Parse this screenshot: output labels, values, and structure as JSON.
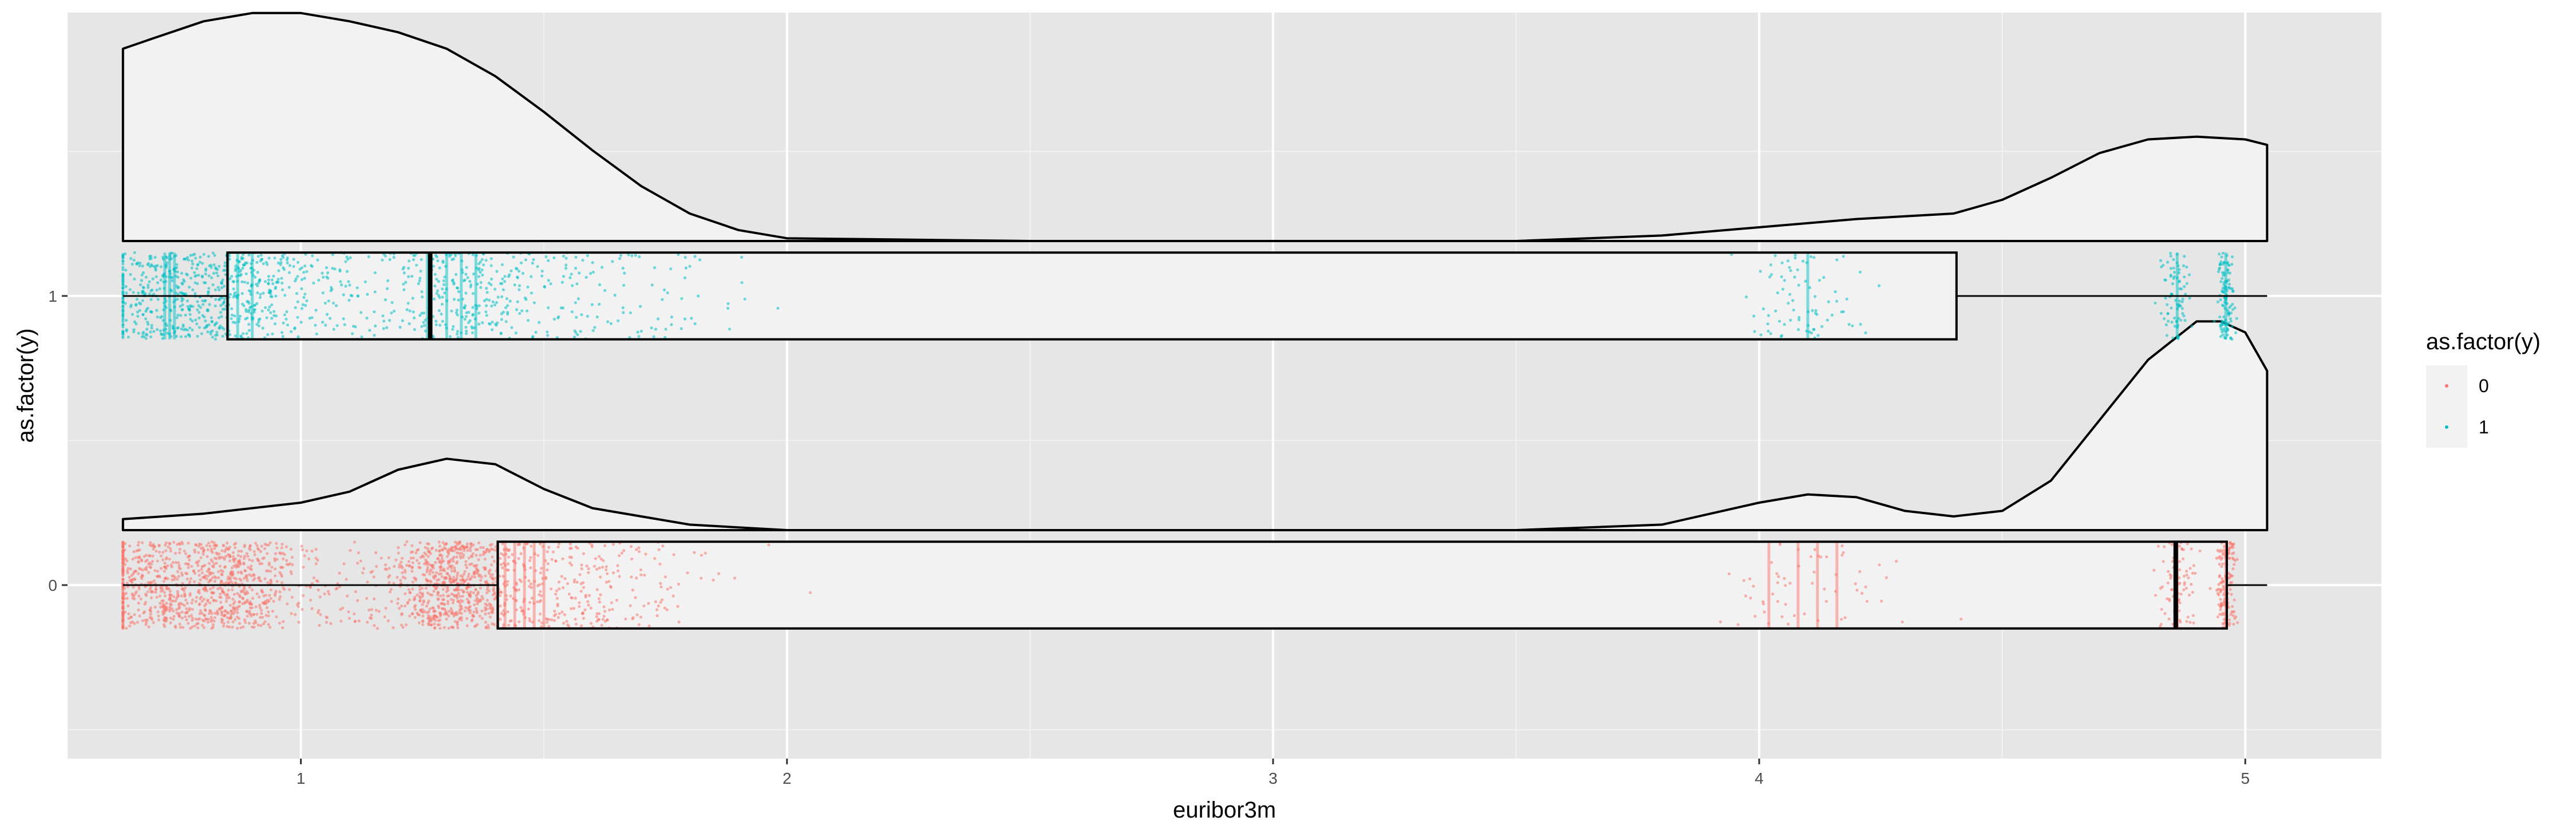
{
  "chart_data": {
    "type": "raincloud",
    "title": "",
    "xlabel": "euribor3m",
    "ylabel": "as.factor(y)",
    "xlim": [
      0.52,
      5.28
    ],
    "ylim": [
      -0.6,
      1.98
    ],
    "x_ticks": [
      1,
      2,
      3,
      4,
      5
    ],
    "y_ticks": [
      0,
      1
    ],
    "grid": true,
    "legend": {
      "title": "as.factor(y)",
      "position": "right",
      "entries": [
        {
          "label": "0",
          "color": "#F8766D"
        },
        {
          "label": "1",
          "color": "#00BFC4"
        }
      ]
    },
    "series": [
      {
        "name": "0",
        "y": 0,
        "color": "#F8766D",
        "box": {
          "min": 0.634,
          "q1": 1.405,
          "median": 4.857,
          "q3": 4.962,
          "max": 5.045
        },
        "density": {
          "x": [
            0.634,
            0.8,
            1.0,
            1.1,
            1.2,
            1.3,
            1.4,
            1.5,
            1.6,
            1.8,
            2.0,
            2.5,
            3.0,
            3.5,
            3.8,
            3.9,
            4.0,
            4.1,
            4.2,
            4.3,
            4.4,
            4.5,
            4.6,
            4.7,
            4.8,
            4.9,
            4.95,
            5.0,
            5.045
          ],
          "h": [
            0.04,
            0.06,
            0.1,
            0.14,
            0.22,
            0.26,
            0.24,
            0.15,
            0.08,
            0.02,
            0.0,
            0.0,
            0.0,
            0.0,
            0.02,
            0.06,
            0.1,
            0.13,
            0.12,
            0.07,
            0.05,
            0.07,
            0.18,
            0.4,
            0.62,
            0.76,
            0.76,
            0.72,
            0.58
          ]
        },
        "jitter_clusters": [
          {
            "center": 0.72,
            "spread": 0.09,
            "count": 650
          },
          {
            "center": 0.88,
            "spread": 0.05,
            "count": 350
          },
          {
            "center": 1.05,
            "spread": 0.08,
            "count": 100
          },
          {
            "center": 1.31,
            "spread": 0.07,
            "count": 700
          },
          {
            "center": 1.55,
            "spread": 0.15,
            "count": 300
          },
          {
            "center": 4.1,
            "spread": 0.1,
            "count": 60
          },
          {
            "center": 4.86,
            "spread": 0.02,
            "count": 90
          },
          {
            "center": 4.96,
            "spread": 0.01,
            "count": 160
          }
        ],
        "stripes": [
          1.405,
          1.42,
          1.44,
          1.46,
          1.48,
          1.5,
          4.02,
          4.08,
          4.12,
          4.16,
          4.86,
          4.96
        ]
      },
      {
        "name": "1",
        "y": 1,
        "color": "#00BFC4",
        "box": {
          "min": 0.634,
          "q1": 0.849,
          "median": 1.266,
          "q3": 4.406,
          "max": 5.045
        },
        "density": {
          "x": [
            0.634,
            0.7,
            0.8,
            0.9,
            1.0,
            1.1,
            1.2,
            1.3,
            1.4,
            1.5,
            1.6,
            1.7,
            1.8,
            1.9,
            2.0,
            2.5,
            3.0,
            3.5,
            3.8,
            4.0,
            4.2,
            4.4,
            4.5,
            4.6,
            4.7,
            4.8,
            4.9,
            5.0,
            5.045
          ],
          "h": [
            0.7,
            0.74,
            0.8,
            0.83,
            0.83,
            0.8,
            0.76,
            0.7,
            0.6,
            0.47,
            0.33,
            0.2,
            0.1,
            0.04,
            0.01,
            0.0,
            0.0,
            0.0,
            0.02,
            0.05,
            0.08,
            0.1,
            0.15,
            0.23,
            0.32,
            0.37,
            0.38,
            0.37,
            0.35
          ]
        },
        "jitter_clusters": [
          {
            "center": 0.75,
            "spread": 0.09,
            "count": 500
          },
          {
            "center": 0.9,
            "spread": 0.05,
            "count": 150
          },
          {
            "center": 1.05,
            "spread": 0.08,
            "count": 120
          },
          {
            "center": 1.32,
            "spread": 0.08,
            "count": 250
          },
          {
            "center": 1.6,
            "spread": 0.15,
            "count": 150
          },
          {
            "center": 4.1,
            "spread": 0.06,
            "count": 80
          },
          {
            "center": 4.86,
            "spread": 0.015,
            "count": 80
          },
          {
            "center": 4.96,
            "spread": 0.01,
            "count": 120
          }
        ],
        "stripes": [
          0.72,
          0.73,
          0.74,
          0.85,
          0.87,
          0.9,
          1.26,
          1.3,
          1.33,
          1.36,
          4.1,
          4.86,
          4.96
        ]
      }
    ]
  }
}
